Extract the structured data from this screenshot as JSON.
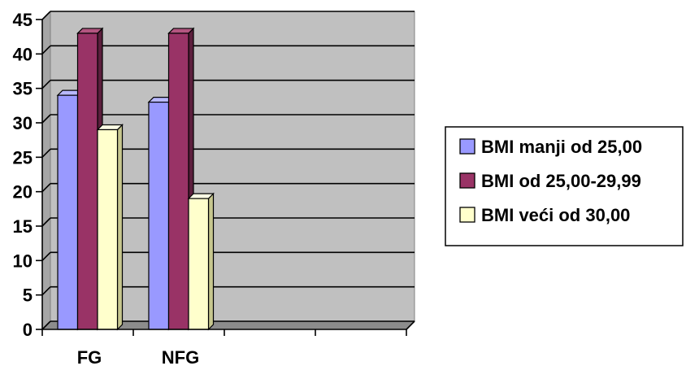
{
  "chart_data": {
    "type": "bar",
    "categories": [
      "FG",
      "NFG",
      "",
      ""
    ],
    "series": [
      {
        "name": "BMI manji od 25,00",
        "values": [
          34,
          33,
          null,
          null
        ],
        "color": "#9999ff",
        "side": "#5c5cbf",
        "top": "#b8b8ff"
      },
      {
        "name": "BMI od 25,00-29,99",
        "values": [
          43,
          43,
          null,
          null
        ],
        "color": "#993366",
        "side": "#5c1f3d",
        "top": "#b35580"
      },
      {
        "name": "BMI veći od 30,00",
        "values": [
          29,
          19,
          null,
          null
        ],
        "color": "#ffffcc",
        "side": "#c7c78f",
        "top": "#ffffe6"
      }
    ],
    "ylim": [
      0,
      45
    ],
    "yticks": [
      "0",
      "5",
      "10",
      "15",
      "20",
      "25",
      "30",
      "35",
      "40",
      "45"
    ],
    "grid": true,
    "legend": "right",
    "title": "",
    "xlabel": "",
    "ylabel": "",
    "background_color": "#c0c0c0"
  }
}
